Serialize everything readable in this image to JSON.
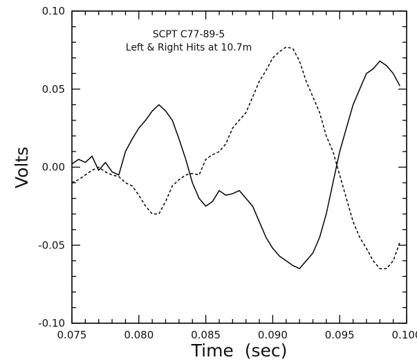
{
  "chart_data": {
    "type": "line",
    "annotations": [
      "SCPT C77-89-5",
      "Left & Right Hits at 10.7m"
    ],
    "xlabel": "Time  (sec)",
    "ylabel": "Volts",
    "xlim": [
      0.075,
      0.1
    ],
    "ylim": [
      -0.1,
      0.1
    ],
    "x_ticks": [
      "0.075",
      "0.080",
      "0.085",
      "0.090",
      "0.095",
      "0.100"
    ],
    "y_ticks": [
      "-0.10",
      "-0.05",
      "0.00",
      "0.05",
      "0.10"
    ],
    "grid": false,
    "legend": "none",
    "series": [
      {
        "style": "solid",
        "x": [
          0.075,
          0.0755,
          0.076,
          0.0765,
          0.077,
          0.0775,
          0.078,
          0.0785,
          0.079,
          0.0795,
          0.08,
          0.0805,
          0.081,
          0.0815,
          0.082,
          0.0825,
          0.083,
          0.0835,
          0.084,
          0.0845,
          0.085,
          0.0855,
          0.086,
          0.0865,
          0.087,
          0.0875,
          0.088,
          0.0885,
          0.089,
          0.0895,
          0.09,
          0.0905,
          0.091,
          0.0915,
          0.092,
          0.0925,
          0.093,
          0.0935,
          0.094,
          0.0945,
          0.095,
          0.0955,
          0.096,
          0.0965,
          0.097,
          0.0975,
          0.098,
          0.0985,
          0.099,
          0.0995
        ],
        "values": [
          0.002,
          0.005,
          0.003,
          0.007,
          -0.002,
          0.003,
          -0.003,
          -0.005,
          0.01,
          0.018,
          0.025,
          0.03,
          0.036,
          0.04,
          0.036,
          0.03,
          0.018,
          0.005,
          -0.01,
          -0.02,
          -0.025,
          -0.022,
          -0.015,
          -0.018,
          -0.017,
          -0.015,
          -0.02,
          -0.025,
          -0.035,
          -0.045,
          -0.052,
          -0.057,
          -0.06,
          -0.063,
          -0.065,
          -0.06,
          -0.055,
          -0.045,
          -0.03,
          -0.01,
          0.01,
          0.025,
          0.04,
          0.05,
          0.06,
          0.063,
          0.068,
          0.065,
          0.06,
          0.052
        ]
      },
      {
        "style": "dashed",
        "x": [
          0.075,
          0.0755,
          0.076,
          0.0765,
          0.077,
          0.0775,
          0.078,
          0.0785,
          0.079,
          0.0795,
          0.08,
          0.0805,
          0.081,
          0.0815,
          0.082,
          0.0825,
          0.083,
          0.0835,
          0.084,
          0.0845,
          0.085,
          0.0855,
          0.086,
          0.0865,
          0.087,
          0.0875,
          0.088,
          0.0885,
          0.089,
          0.0895,
          0.09,
          0.0905,
          0.091,
          0.0915,
          0.092,
          0.0925,
          0.093,
          0.0935,
          0.094,
          0.0945,
          0.095,
          0.0955,
          0.096,
          0.0965,
          0.097,
          0.0975,
          0.098,
          0.0985,
          0.099,
          0.0995
        ],
        "values": [
          -0.01,
          -0.008,
          -0.005,
          -0.002,
          0.0,
          -0.003,
          -0.005,
          -0.006,
          -0.01,
          -0.012,
          -0.018,
          -0.025,
          -0.03,
          -0.03,
          -0.022,
          -0.012,
          -0.008,
          -0.005,
          -0.004,
          -0.005,
          0.005,
          0.008,
          0.01,
          0.015,
          0.025,
          0.03,
          0.035,
          0.045,
          0.055,
          0.062,
          0.07,
          0.074,
          0.077,
          0.076,
          0.068,
          0.055,
          0.045,
          0.035,
          0.02,
          0.01,
          -0.005,
          -0.02,
          -0.035,
          -0.045,
          -0.052,
          -0.06,
          -0.065,
          -0.065,
          -0.06,
          -0.048
        ]
      }
    ]
  }
}
